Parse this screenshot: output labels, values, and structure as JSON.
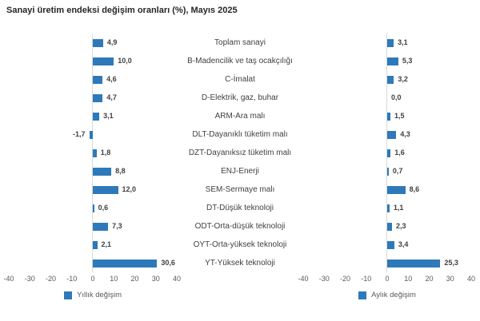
{
  "title": "Sanayi üretim endeksi değişim oranları (%), Mayıs 2025",
  "colors": {
    "bar": "#2e79b9",
    "zero_line": "#d9d9d9",
    "category_label": "#404040",
    "value_label": "#404040",
    "tick_label": "#595959",
    "title": "#262626",
    "background": "#ffffff"
  },
  "chart_data": {
    "type": "bar",
    "orientation": "horizontal",
    "title": "Sanayi üretim endeksi değişim oranları (%), Mayıs 2025",
    "categories": [
      "Toplam sanayi",
      "B-Madencilik ve taş ocakçılığı",
      "C-İmalat",
      "D-Elektrik, gaz, buhar",
      "ARM-Ara malı",
      "DLT-Dayanıklı tüketim malı",
      "DZT-Dayanıksız tüketim malı",
      "ENJ-Enerji",
      "SEM-Sermaye malı",
      "DT-Düşük teknoloji",
      "ODT-Orta-düşük teknoloji",
      "OYT-Orta-yüksek teknoloji",
      "YT-Yüksek teknoloji"
    ],
    "series": [
      {
        "name": "Yıllık değişim",
        "values": [
          4.9,
          10.0,
          4.6,
          4.7,
          3.1,
          -1.7,
          1.8,
          8.8,
          12.0,
          0.6,
          7.3,
          2.1,
          30.6
        ],
        "labels": [
          "4,9",
          "10,0",
          "4,6",
          "4,7",
          "3,1",
          "-1,7",
          "1,8",
          "8,8",
          "12,0",
          "0,6",
          "7,3",
          "2,1",
          "30,6"
        ]
      },
      {
        "name": "Aylık değişim",
        "values": [
          3.1,
          5.3,
          3.2,
          0.0,
          1.5,
          4.3,
          1.6,
          0.7,
          8.6,
          1.1,
          2.3,
          3.4,
          25.3
        ],
        "labels": [
          "3,1",
          "5,3",
          "3,2",
          "0,0",
          "1,5",
          "4,3",
          "1,6",
          "0,7",
          "8,6",
          "1,1",
          "2,3",
          "3,4",
          "25,3"
        ]
      }
    ],
    "xlim": [
      -40,
      40
    ],
    "ticks": [
      "-40",
      "-30",
      "-20",
      "-10",
      "0",
      "10",
      "20",
      "30",
      "40"
    ],
    "grid": "zero-line-only",
    "legend_position": "bottom"
  }
}
